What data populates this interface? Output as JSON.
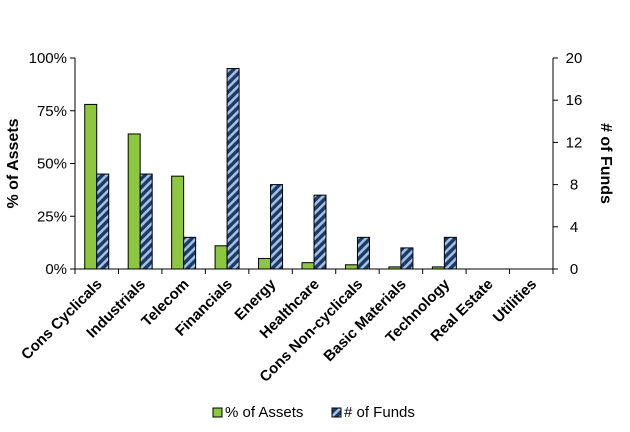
{
  "chart_data": {
    "type": "bar",
    "categories": [
      "Cons Cyclicals",
      "Industrials",
      "Telecom",
      "Financials",
      "Energy",
      "Healthcare",
      "Cons Non-cyclicals",
      "Basic Materials",
      "Technology",
      "Real Estate",
      "Utilities"
    ],
    "series": [
      {
        "name": "% of Assets",
        "axis": "left",
        "color": "#8DC63F",
        "values": [
          78,
          64,
          44,
          11,
          5,
          3,
          2,
          1,
          1,
          0,
          0
        ]
      },
      {
        "name": "# of Funds",
        "axis": "right",
        "color": "#1F3864",
        "hatch": "#9DC3E6",
        "values": [
          9,
          9,
          3,
          19,
          8,
          7,
          3,
          2,
          3,
          0,
          0
        ]
      }
    ],
    "y_left": {
      "label": "% of Assets",
      "ylim": [
        0,
        100
      ],
      "ticks": [
        "0%",
        "25%",
        "50%",
        "75%",
        "100%"
      ],
      "tick_values": [
        0,
        25,
        50,
        75,
        100
      ]
    },
    "y_right": {
      "label": "# of Funds",
      "ylim": [
        0,
        20
      ],
      "ticks": [
        "0",
        "4",
        "8",
        "12",
        "16",
        "20"
      ],
      "tick_values": [
        0,
        4,
        8,
        12,
        16,
        20
      ]
    },
    "grid": false,
    "legend_position": "bottom"
  }
}
